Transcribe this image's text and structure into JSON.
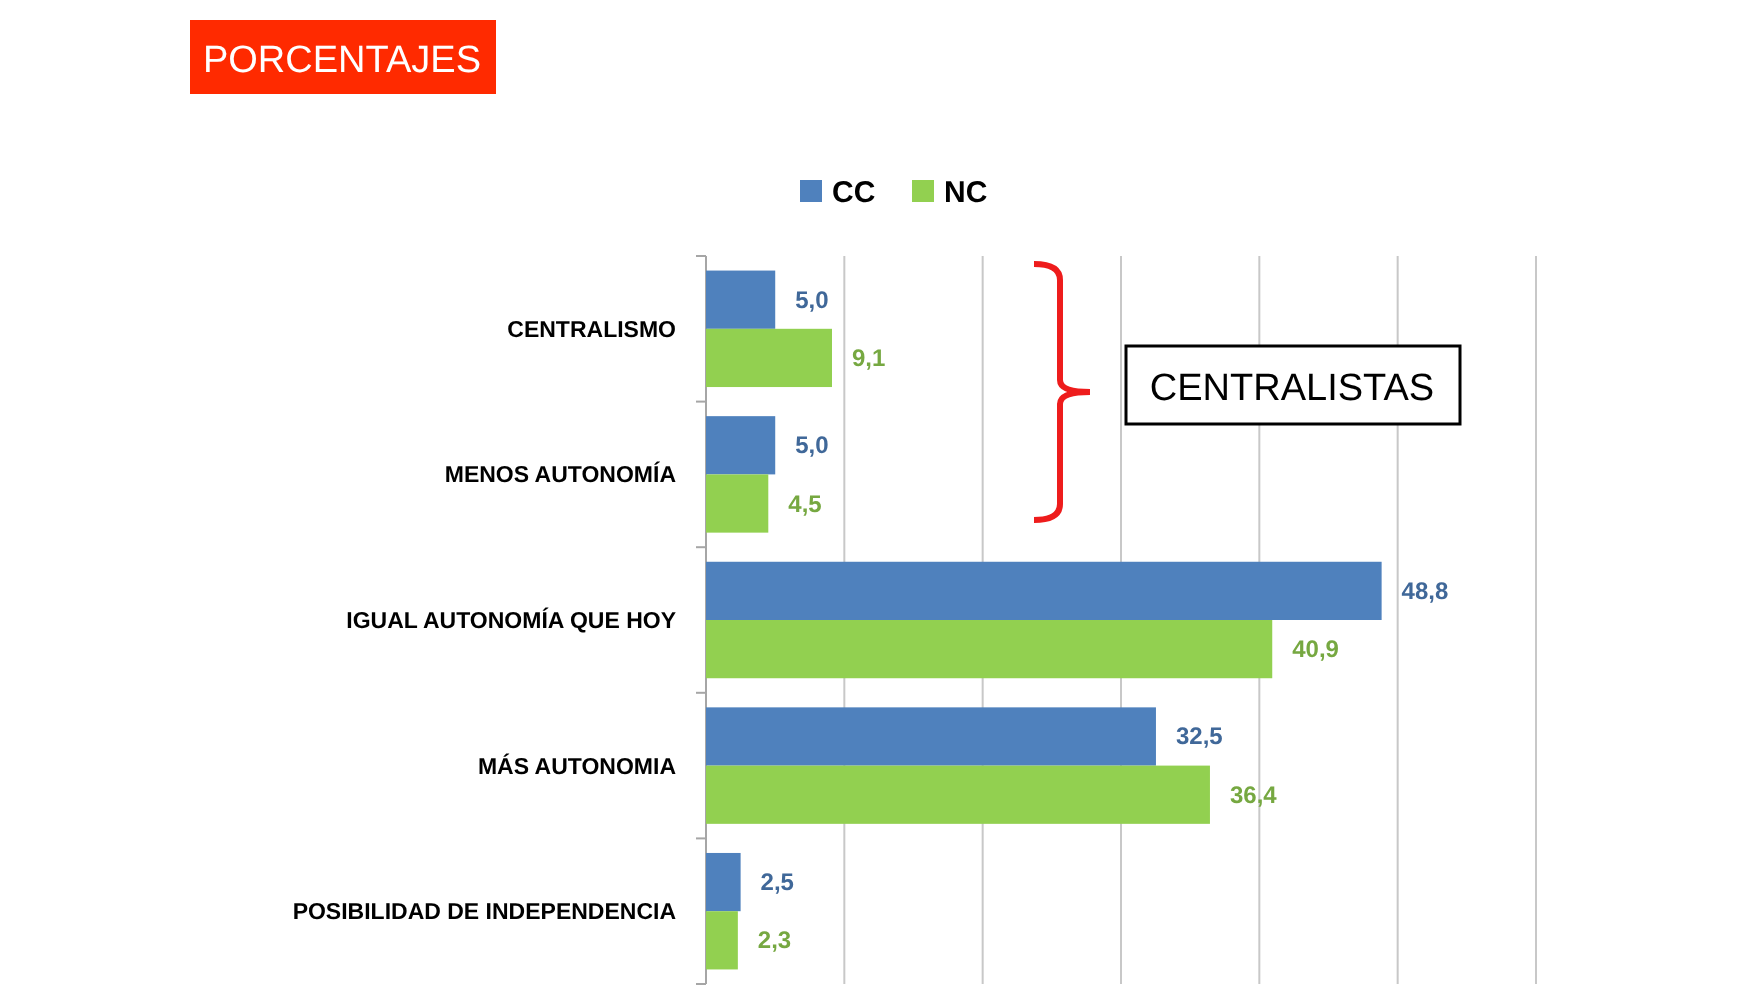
{
  "chart_data": {
    "type": "bar",
    "orientation": "horizontal",
    "title": "PORCENTAJES",
    "categories": [
      "CENTRALISMO",
      "MENOS AUTONOMÍA",
      "IGUAL AUTONOMÍA QUE HOY",
      "MÁS AUTONOMIA",
      "POSIBILIDAD DE INDEPENDENCIA"
    ],
    "series": [
      {
        "name": "CC",
        "color": "#4f81bd",
        "values": [
          5.0,
          5.0,
          48.8,
          32.5,
          2.5
        ],
        "value_labels": [
          "5,0",
          "5,0",
          "48,8",
          "32,5",
          "2,5"
        ]
      },
      {
        "name": "NC",
        "color": "#92d050",
        "values": [
          9.1,
          4.5,
          40.9,
          36.4,
          2.3
        ],
        "value_labels": [
          "9,1",
          "4,5",
          "40,9",
          "36,4",
          "2,3"
        ]
      }
    ],
    "grid": "x",
    "legend": "top",
    "annotations": [
      "CENTRALISTAS"
    ]
  }
}
